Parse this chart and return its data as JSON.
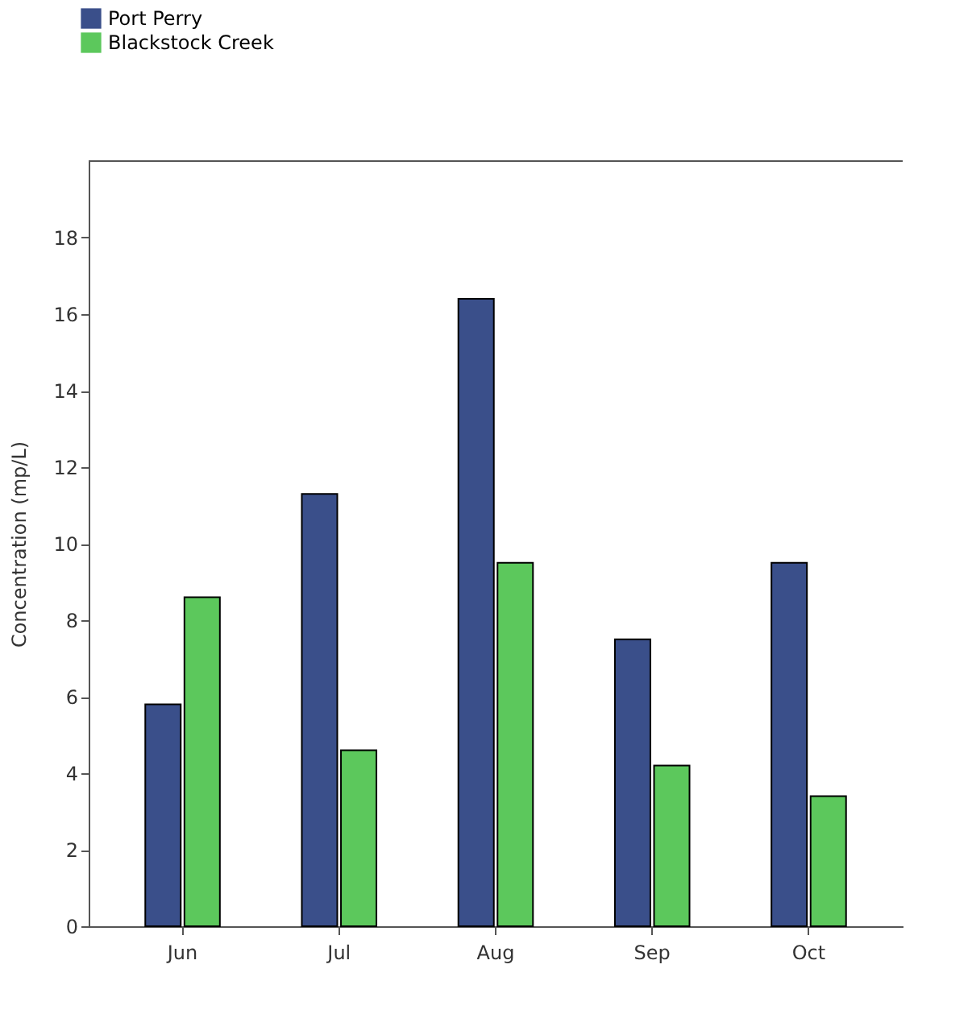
{
  "chart_data": {
    "type": "bar",
    "ylabel": "Concentration (mp/L)",
    "categories": [
      "Jun",
      "Jul",
      "Aug",
      "Sep",
      "Oct"
    ],
    "series": [
      {
        "name": "Port Perry",
        "color": "#3a4f8a",
        "values": [
          5.8,
          11.3,
          16.4,
          7.5,
          9.5
        ]
      },
      {
        "name": "Blackstock Creek",
        "color": "#5cc85c",
        "values": [
          8.6,
          4.6,
          9.5,
          4.2,
          3.4
        ]
      }
    ],
    "ylim": [
      0,
      20
    ],
    "yticks": [
      0,
      2,
      4,
      6,
      8,
      10,
      12,
      14,
      16,
      18
    ],
    "grid": false,
    "legend": "top left"
  }
}
